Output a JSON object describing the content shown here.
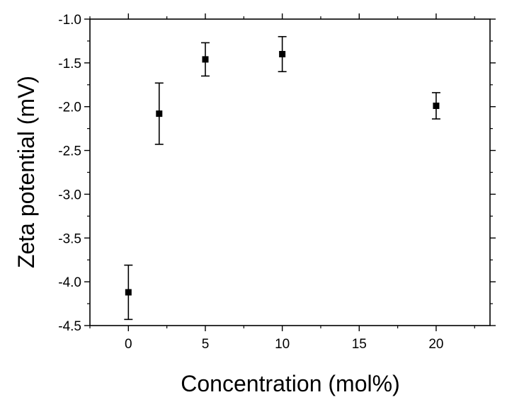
{
  "chart_data": {
    "type": "scatter",
    "title": "",
    "xlabel": "Concentration (mol%)",
    "ylabel": "Zeta potential (mV)",
    "xlim": [
      -2.5,
      23.5
    ],
    "ylim": [
      -4.5,
      -1.0
    ],
    "x_ticks": [
      0,
      5,
      10,
      15,
      20
    ],
    "x_tick_labels": [
      "0",
      "5",
      "10",
      "15",
      "20"
    ],
    "y_ticks": [
      -1.0,
      -1.5,
      -2.0,
      -2.5,
      -3.0,
      -3.5,
      -4.0,
      -4.5
    ],
    "y_tick_labels": [
      "-1.0",
      "-1.5",
      "-2.0",
      "-2.5",
      "-3.0",
      "-3.5",
      "-4.0",
      "-4.5"
    ],
    "grid": false,
    "legend": "none",
    "marker": "square",
    "color": "#000000",
    "series": [
      {
        "x": [
          0,
          2,
          5,
          10,
          20
        ],
        "y": [
          -4.12,
          -2.08,
          -1.46,
          -1.4,
          -1.99
        ],
        "error": [
          0.31,
          0.35,
          0.19,
          0.2,
          0.15
        ]
      }
    ]
  }
}
